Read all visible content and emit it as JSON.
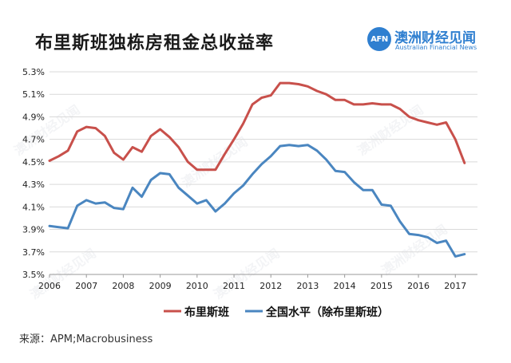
{
  "header": {
    "title": "布里斯班独栋房租金总收益率",
    "logo_mark": "AFN",
    "logo_name_cn": "澳洲财经见闻",
    "logo_name_en": "Australian Financial News"
  },
  "source": "来源：APM;Macrobusiness",
  "watermark": "澳洲财经见闻",
  "colors": {
    "brisbane": "#c8504b",
    "national": "#4a86c0",
    "grid": "#d9d9d9",
    "brand": "#2f7fd0"
  },
  "chart_data": {
    "type": "line",
    "title": "布里斯班独栋房租金总收益率",
    "xlabel": "",
    "ylabel": "",
    "xlim": [
      2006,
      2017.6
    ],
    "ylim": [
      3.5,
      5.3
    ],
    "x_ticks": [
      "2006",
      "2007",
      "2008",
      "2009",
      "2010",
      "2011",
      "2012",
      "2013",
      "2014",
      "2015",
      "2016",
      "2017"
    ],
    "x_tick_values": [
      2006,
      2007,
      2008,
      2009,
      2010,
      2011,
      2012,
      2013,
      2014,
      2015,
      2016,
      2017
    ],
    "y_ticks": [
      "3.5%",
      "3.7%",
      "3.9%",
      "4.1%",
      "4.3%",
      "4.5%",
      "4.7%",
      "4.9%",
      "5.1%",
      "5.3%"
    ],
    "y_tick_values": [
      3.5,
      3.7,
      3.9,
      4.1,
      4.3,
      4.5,
      4.7,
      4.9,
      5.1,
      5.3
    ],
    "grid": true,
    "legend_position": "bottom",
    "series": [
      {
        "name": "布里斯班",
        "x": [
          2006.0,
          2006.25,
          2006.5,
          2006.75,
          2007.0,
          2007.25,
          2007.5,
          2007.75,
          2008.0,
          2008.25,
          2008.5,
          2008.75,
          2009.0,
          2009.25,
          2009.5,
          2009.75,
          2010.0,
          2010.25,
          2010.5,
          2010.75,
          2011.0,
          2011.25,
          2011.5,
          2011.75,
          2012.0,
          2012.25,
          2012.5,
          2012.75,
          2013.0,
          2013.25,
          2013.5,
          2013.75,
          2014.0,
          2014.25,
          2014.5,
          2014.75,
          2015.0,
          2015.25,
          2015.5,
          2015.75,
          2016.0,
          2016.25,
          2016.5,
          2016.75,
          2017.0,
          2017.25
        ],
        "values": [
          4.51,
          4.55,
          4.6,
          4.77,
          4.81,
          4.8,
          4.73,
          4.58,
          4.52,
          4.63,
          4.59,
          4.73,
          4.79,
          4.72,
          4.63,
          4.5,
          4.43,
          4.43,
          4.43,
          4.57,
          4.7,
          4.84,
          5.01,
          5.07,
          5.09,
          5.2,
          5.2,
          5.19,
          5.17,
          5.13,
          5.1,
          5.05,
          5.05,
          5.01,
          5.01,
          5.02,
          5.01,
          5.01,
          4.97,
          4.9,
          4.87,
          4.85,
          4.83,
          4.85,
          4.7,
          4.49
        ]
      },
      {
        "name": "全国水平（除布里斯班）",
        "x": [
          2006.0,
          2006.25,
          2006.5,
          2006.75,
          2007.0,
          2007.25,
          2007.5,
          2007.75,
          2008.0,
          2008.25,
          2008.5,
          2008.75,
          2009.0,
          2009.25,
          2009.5,
          2009.75,
          2010.0,
          2010.25,
          2010.5,
          2010.75,
          2011.0,
          2011.25,
          2011.5,
          2011.75,
          2012.0,
          2012.25,
          2012.5,
          2012.75,
          2013.0,
          2013.25,
          2013.5,
          2013.75,
          2014.0,
          2014.25,
          2014.5,
          2014.75,
          2015.0,
          2015.25,
          2015.5,
          2015.75,
          2016.0,
          2016.25,
          2016.5,
          2016.75,
          2017.0,
          2017.25
        ],
        "values": [
          3.93,
          3.92,
          3.91,
          4.11,
          4.16,
          4.13,
          4.14,
          4.09,
          4.08,
          4.27,
          4.19,
          4.34,
          4.4,
          4.39,
          4.27,
          4.2,
          4.13,
          4.16,
          4.06,
          4.13,
          4.22,
          4.29,
          4.39,
          4.48,
          4.55,
          4.64,
          4.65,
          4.64,
          4.65,
          4.6,
          4.52,
          4.42,
          4.41,
          4.32,
          4.25,
          4.25,
          4.12,
          4.11,
          3.97,
          3.86,
          3.85,
          3.83,
          3.78,
          3.8,
          3.66,
          3.68
        ]
      }
    ]
  }
}
